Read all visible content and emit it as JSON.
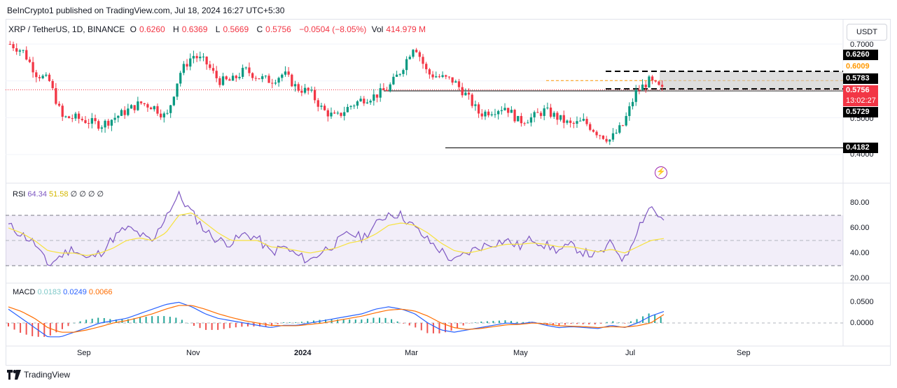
{
  "header": {
    "published": "BeInCrypto1 published on TradingView.com, Jul 18, 2024 16:27 UTC+5:30"
  },
  "symbol": {
    "name": "XRP / TetherUS, 1D, BINANCE",
    "o_label": "O",
    "o": "0.6260",
    "h_label": "H",
    "h": "0.6369",
    "l_label": "L",
    "l": "0.5669",
    "c_label": "C",
    "c": "0.5756",
    "change": "−0.0504 (−8.05%)",
    "vol_label": "Vol",
    "vol": "414.979 M"
  },
  "currency_button": "USDT",
  "price_axis": {
    "ticks": [
      "0.7000",
      "0.5000",
      "0.4000"
    ],
    "tags": [
      {
        "text": "0.6260",
        "bg": "#000000",
        "fg": "#ffffff"
      },
      {
        "text": "0.6009",
        "bg": "#ffffff",
        "fg": "#ff9800"
      },
      {
        "text": "0.5783",
        "bg": "#000000",
        "fg": "#ffffff"
      },
      {
        "text": "0.5756",
        "bg": "#f23645",
        "fg": "#ffffff"
      },
      {
        "text": "13:02:27",
        "bg": "#f23645",
        "fg": "#ffffff"
      },
      {
        "text": "0.5729",
        "bg": "#000000",
        "fg": "#ffffff"
      },
      {
        "text": "0.4182",
        "bg": "#000000",
        "fg": "#ffffff"
      }
    ]
  },
  "rsi": {
    "label": "RSI",
    "value1": "64.34",
    "value2": "51.58",
    "extras": "∅ ∅ ∅ ∅",
    "ticks": [
      "80.00",
      "60.00",
      "40.00",
      "20.00"
    ]
  },
  "macd": {
    "label": "MACD",
    "value1": "0.0183",
    "value2": "0.0249",
    "value3": "0.0066",
    "ticks": [
      "0.0500",
      "0.0000"
    ]
  },
  "time_axis": [
    "Sep",
    "Nov",
    "2024",
    "Mar",
    "May",
    "Jul",
    "Sep"
  ],
  "footer": "TradingView",
  "colors": {
    "up": "#089981",
    "down": "#f23645",
    "rsi_line": "#7e57c2",
    "rsi_ma": "#f7e23e",
    "macd_line": "#2962ff",
    "signal_line": "#ff6d00",
    "box": "#c8c8c8"
  },
  "chart_data": {
    "type": "candlestick",
    "title": "XRP / TetherUS, 1D, BINANCE",
    "price_key_levels": [
      0.626,
      0.6009,
      0.5783,
      0.5756,
      0.5729,
      0.4182
    ],
    "close_path_approx": [
      0.7,
      0.68,
      0.62,
      0.6,
      0.5,
      0.5,
      0.49,
      0.48,
      0.5,
      0.52,
      0.54,
      0.53,
      0.5,
      0.62,
      0.67,
      0.65,
      0.6,
      0.6,
      0.63,
      0.61,
      0.6,
      0.62,
      0.58,
      0.57,
      0.52,
      0.5,
      0.53,
      0.55,
      0.56,
      0.58,
      0.63,
      0.7,
      0.62,
      0.61,
      0.6,
      0.56,
      0.51,
      0.52,
      0.53,
      0.49,
      0.5,
      0.52,
      0.5,
      0.48,
      0.49,
      0.46,
      0.44,
      0.48,
      0.57,
      0.6,
      0.5756
    ],
    "rsi_approx": [
      62,
      55,
      48,
      30,
      38,
      44,
      35,
      40,
      52,
      60,
      55,
      48,
      70,
      86,
      72,
      58,
      50,
      48,
      55,
      52,
      40,
      45,
      38,
      34,
      42,
      48,
      56,
      52,
      62,
      72,
      70,
      60,
      50,
      42,
      33,
      40,
      45,
      48,
      50,
      45,
      52,
      46,
      42,
      46,
      40,
      38,
      48,
      34,
      60,
      78,
      64.34
    ],
    "rsi_ma_approx": [
      60,
      56,
      50,
      42,
      40,
      40,
      38,
      40,
      44,
      50,
      52,
      50,
      56,
      70,
      72,
      64,
      56,
      50,
      50,
      50,
      45,
      44,
      42,
      40,
      42,
      44,
      48,
      50,
      55,
      62,
      64,
      62,
      56,
      48,
      42,
      40,
      42,
      45,
      47,
      47,
      48,
      47,
      45,
      45,
      43,
      41,
      43,
      40,
      45,
      50,
      51.58
    ],
    "macd_approx": [
      0.03,
      0.01,
      -0.01,
      -0.03,
      -0.03,
      -0.02,
      -0.01,
      0.0,
      0.005,
      0.01,
      0.02,
      0.03,
      0.04,
      0.045,
      0.035,
      0.02,
      0.01,
      0.005,
      0.0,
      -0.005,
      -0.01,
      -0.005,
      -0.005,
      0.0,
      0.005,
      0.01,
      0.015,
      0.02,
      0.03,
      0.035,
      0.03,
      0.02,
      0.0,
      -0.015,
      -0.02,
      -0.015,
      -0.01,
      -0.005,
      0.0,
      -0.002,
      0.002,
      -0.005,
      -0.01,
      -0.008,
      -0.01,
      -0.012,
      -0.005,
      -0.01,
      0.0,
      0.015,
      0.0249
    ],
    "signal_approx": [
      0.035,
      0.025,
      0.01,
      -0.01,
      -0.02,
      -0.02,
      -0.015,
      -0.008,
      0.0,
      0.005,
      0.012,
      0.02,
      0.03,
      0.038,
      0.038,
      0.03,
      0.02,
      0.012,
      0.005,
      0.0,
      -0.005,
      -0.006,
      -0.006,
      -0.003,
      0.0,
      0.005,
      0.01,
      0.015,
      0.022,
      0.028,
      0.03,
      0.026,
      0.015,
      0.0,
      -0.01,
      -0.014,
      -0.012,
      -0.008,
      -0.004,
      -0.003,
      0.0,
      -0.002,
      -0.006,
      -0.007,
      -0.008,
      -0.01,
      -0.008,
      -0.009,
      -0.006,
      0.0,
      0.0183
    ]
  }
}
